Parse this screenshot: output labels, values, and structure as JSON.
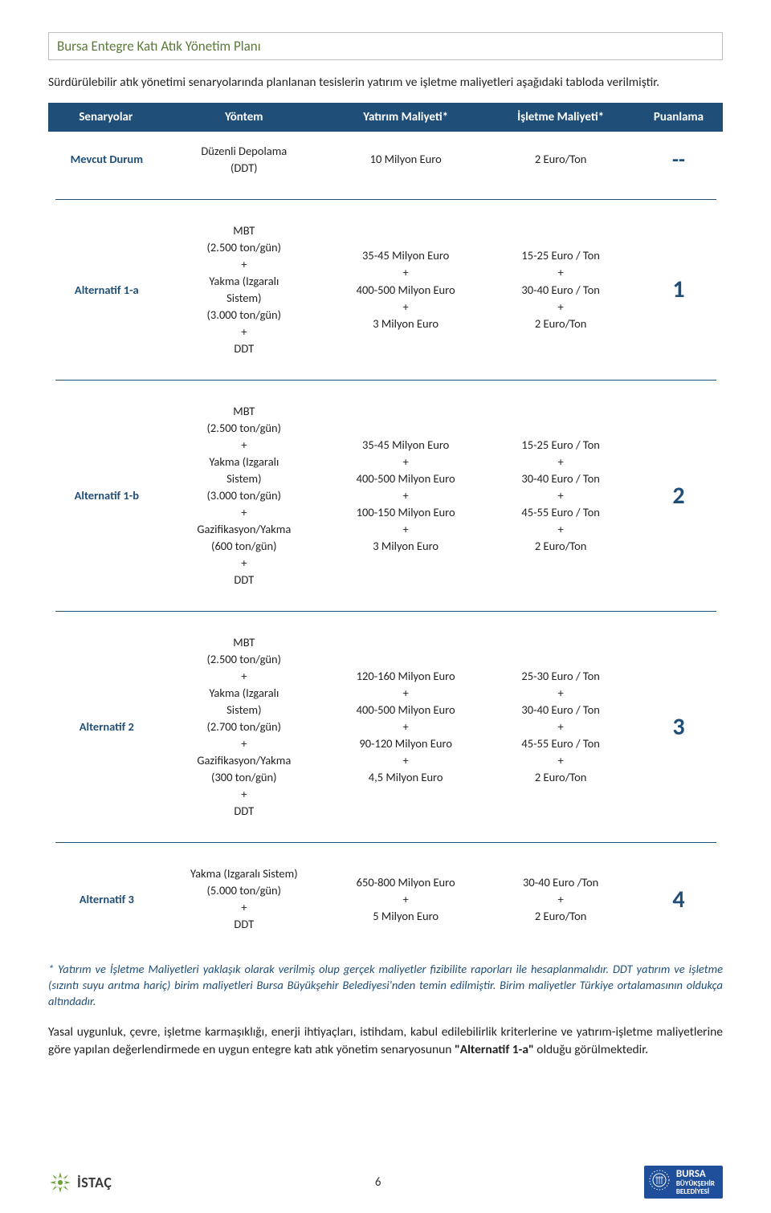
{
  "doc_title": "Bursa Entegre Katı Atık Yönetim Planı",
  "intro": "Sürdürülebilir atık yönetimi senaryolarında planlanan tesislerin yatırım ve işletme maliyetleri aşağıdaki tabloda verilmiştir.",
  "table": {
    "headers": [
      "Senaryolar",
      "Yöntem",
      "Yatırım Maliyeti*",
      "İşletme Maliyeti*",
      "Puanlama"
    ],
    "col_widths": [
      "17%",
      "24%",
      "24%",
      "22%",
      "13%"
    ],
    "header_bg": "#1f4e79",
    "header_fg": "#ffffff",
    "rows": [
      {
        "scenario": "Mevcut Durum",
        "method": "Düzenli Depolama\n(DDT)",
        "investment": "10 Milyon Euro",
        "operating": "2 Euro/Ton",
        "score": "--",
        "score_class": "puan-dash"
      },
      {
        "scenario": "Alternatif 1-a",
        "method": "MBT\n(2.500 ton/gün)\n+\nYakma  (Izgaralı\nSistem)\n(3.000 ton/gün)\n+\nDDT",
        "investment": "35-45 Milyon Euro\n+\n400-500 Milyon Euro\n+\n3 Milyon Euro",
        "operating": "15-25 Euro / Ton\n+\n30-40 Euro / Ton\n+\n2 Euro/Ton",
        "score": "1",
        "score_class": "puan"
      },
      {
        "scenario": "Alternatif 1-b",
        "method": "MBT\n(2.500 ton/gün)\n+\nYakma  (Izgaralı\nSistem)\n(3.000 ton/gün)\n+\nGazifikasyon/Yakma\n(600 ton/gün)\n+\nDDT",
        "investment": "35-45 Milyon Euro\n+\n400-500 Milyon Euro\n+\n100-150 Milyon Euro\n+\n3 Milyon Euro",
        "operating": "15-25 Euro / Ton\n+\n30-40 Euro / Ton\n+\n45-55 Euro / Ton\n+\n2 Euro/Ton",
        "score": "2",
        "score_class": "puan"
      },
      {
        "scenario": "Alternatif 2",
        "method": "MBT\n(2.500 ton/gün)\n+\nYakma  (Izgaralı\nSistem)\n(2.700 ton/gün)\n+\nGazifikasyon/Yakma\n(300 ton/gün)\n+\nDDT",
        "investment": "120-160 Milyon Euro\n+\n400-500 Milyon Euro\n+\n90-120 Milyon Euro\n+\n4,5 Milyon Euro",
        "operating": "25-30 Euro / Ton\n+\n30-40 Euro / Ton\n+\n45-55 Euro / Ton\n+\n2 Euro/Ton",
        "score": "3",
        "score_class": "puan"
      },
      {
        "scenario": "Alternatif 3",
        "method": "Yakma (Izgaralı Sistem)\n(5.000 ton/gün)\n+\nDDT",
        "investment": "650-800  Milyon Euro\n+\n5 Milyon Euro",
        "operating": "30-40 Euro /Ton\n+\n2 Euro/Ton",
        "score": "4",
        "score_class": "puan"
      }
    ]
  },
  "footnote": "* Yatırım ve İşletme Maliyetleri yaklaşık olarak verilmiş olup gerçek maliyetler fizibilite raporları ile hesaplanmalıdır. DDT yatırım ve işletme (sızıntı suyu arıtma hariç)  birim maliyetleri Bursa Büyükşehir Belediyesi'nden temin edilmiştir. Birim maliyetler Türkiye ortalamasının oldukça altındadır.",
  "conclusion_pre": "Yasal uygunluk, çevre, işletme karmaşıklığı, enerji ihtiyaçları, istihdam, kabul edilebilirlik kriterlerine ve yatırım-işletme maliyetlerine göre yapılan değerlendirmede en uygun entegre katı atık yönetim senaryosunun ",
  "conclusion_bold": "\"Alternatif 1-a\"",
  "conclusion_post": " olduğu görülmektedir.",
  "footer": {
    "istac": "İSTAÇ",
    "page_number": "6",
    "bursa_line1": "BURSA",
    "bursa_line2": "BÜYÜKŞEHİR",
    "bursa_line3": "BELEDİYESİ"
  },
  "colors": {
    "title_green": "#5b7a3a",
    "header_blue": "#1f4e79",
    "bursa_blue": "#1f4e9a",
    "istac_green": "#6aa033"
  }
}
